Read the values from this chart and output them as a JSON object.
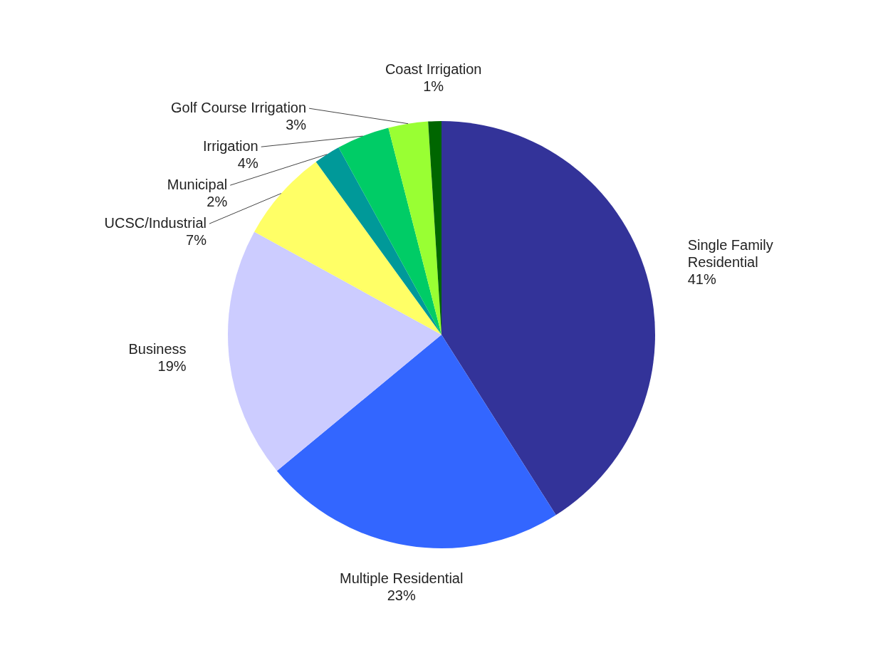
{
  "chart_data": {
    "type": "pie",
    "categories": [
      "Single Family Residential",
      "Multiple Residential",
      "Business",
      "UCSC/Industrial",
      "Municipal",
      "Irrigation",
      "Golf Course Irrigation",
      "Coast Irrigation"
    ],
    "values": [
      41,
      23,
      19,
      7,
      2,
      4,
      3,
      1
    ],
    "value_labels": [
      "41%",
      "23%",
      "19%",
      "7%",
      "2%",
      "4%",
      "3%",
      "1%"
    ],
    "colors": [
      "#333399",
      "#3366ff",
      "#ccccff",
      "#ffff66",
      "#009999",
      "#00cc66",
      "#99ff33",
      "#006600"
    ]
  }
}
